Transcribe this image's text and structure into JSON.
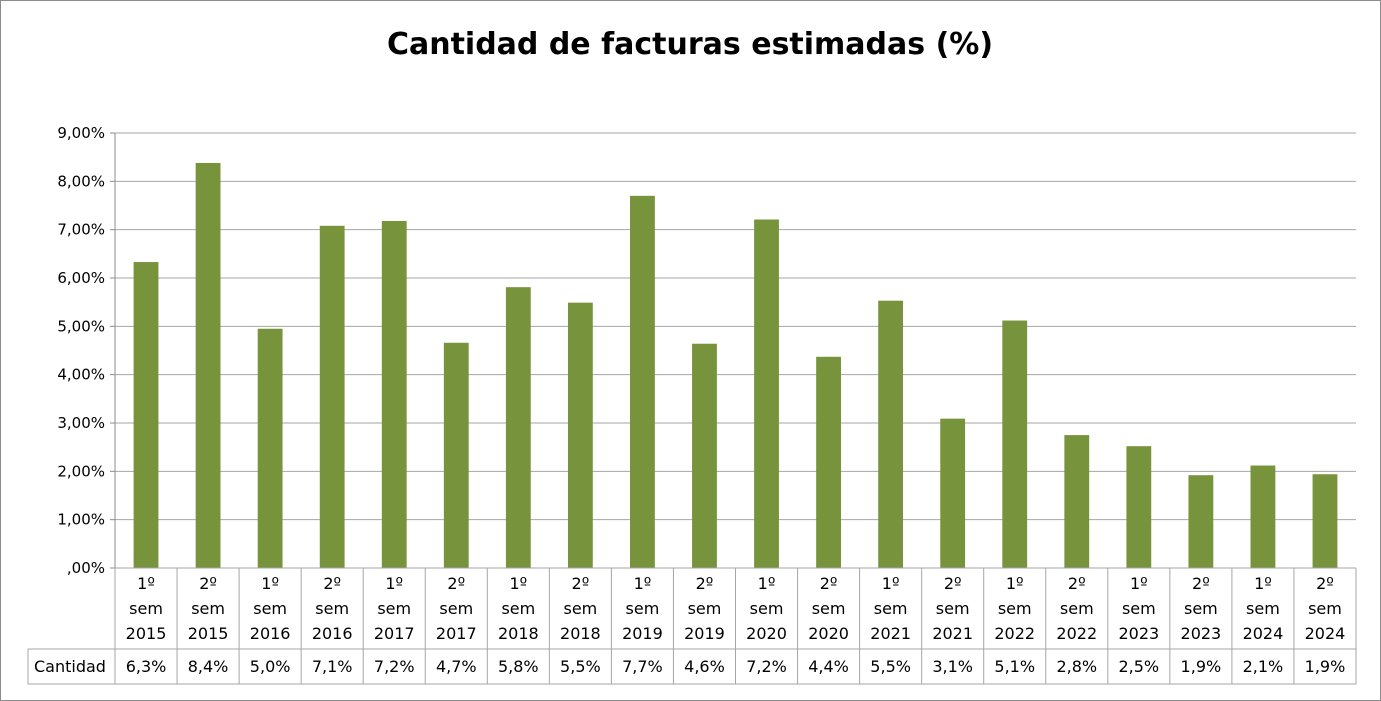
{
  "chart_data": {
    "type": "bar",
    "title": "Cantidad de facturas estimadas (%)",
    "xlabel": "",
    "ylabel": "",
    "ylim": [
      0,
      9
    ],
    "yticks": [
      "9,00%",
      "8,00%",
      "7,00%",
      "6,00%",
      "5,00%",
      "4,00%",
      "3,00%",
      "2,00%",
      "1,00%",
      ",00%"
    ],
    "grid": true,
    "bar_color": "#77933C",
    "categories": [
      [
        "1º",
        "sem",
        "2015"
      ],
      [
        "2º",
        "sem",
        "2015"
      ],
      [
        "1º",
        "sem",
        "2016"
      ],
      [
        "2º",
        "sem",
        "2016"
      ],
      [
        "1º",
        "sem",
        "2017"
      ],
      [
        "2º",
        "sem",
        "2017"
      ],
      [
        "1º",
        "sem",
        "2018"
      ],
      [
        "2º",
        "sem",
        "2018"
      ],
      [
        "1º",
        "sem",
        "2019"
      ],
      [
        "2º",
        "sem",
        "2019"
      ],
      [
        "1º",
        "sem",
        "2020"
      ],
      [
        "2º",
        "sem",
        "2020"
      ],
      [
        "1º",
        "sem",
        "2021"
      ],
      [
        "2º",
        "sem",
        "2021"
      ],
      [
        "1º",
        "sem",
        "2022"
      ],
      [
        "2º",
        "sem",
        "2022"
      ],
      [
        "1º",
        "sem",
        "2023"
      ],
      [
        "2º",
        "sem",
        "2023"
      ],
      [
        "1º",
        "sem",
        "2024"
      ],
      [
        "2º",
        "sem",
        "2024"
      ]
    ],
    "series": [
      {
        "name": "Cantidad",
        "values": [
          6.33,
          8.38,
          4.95,
          7.08,
          7.18,
          4.66,
          5.81,
          5.49,
          7.7,
          4.64,
          7.21,
          4.37,
          5.53,
          3.09,
          5.12,
          2.75,
          2.52,
          1.92,
          2.12,
          1.94
        ],
        "labels": [
          "6,3%",
          "8,4%",
          "5,0%",
          "7,1%",
          "7,2%",
          "4,7%",
          "5,8%",
          "5,5%",
          "7,7%",
          "4,6%",
          "7,2%",
          "4,4%",
          "5,5%",
          "3,1%",
          "5,1%",
          "2,8%",
          "2,5%",
          "1,9%",
          "2,1%",
          "1,9%"
        ]
      }
    ]
  }
}
